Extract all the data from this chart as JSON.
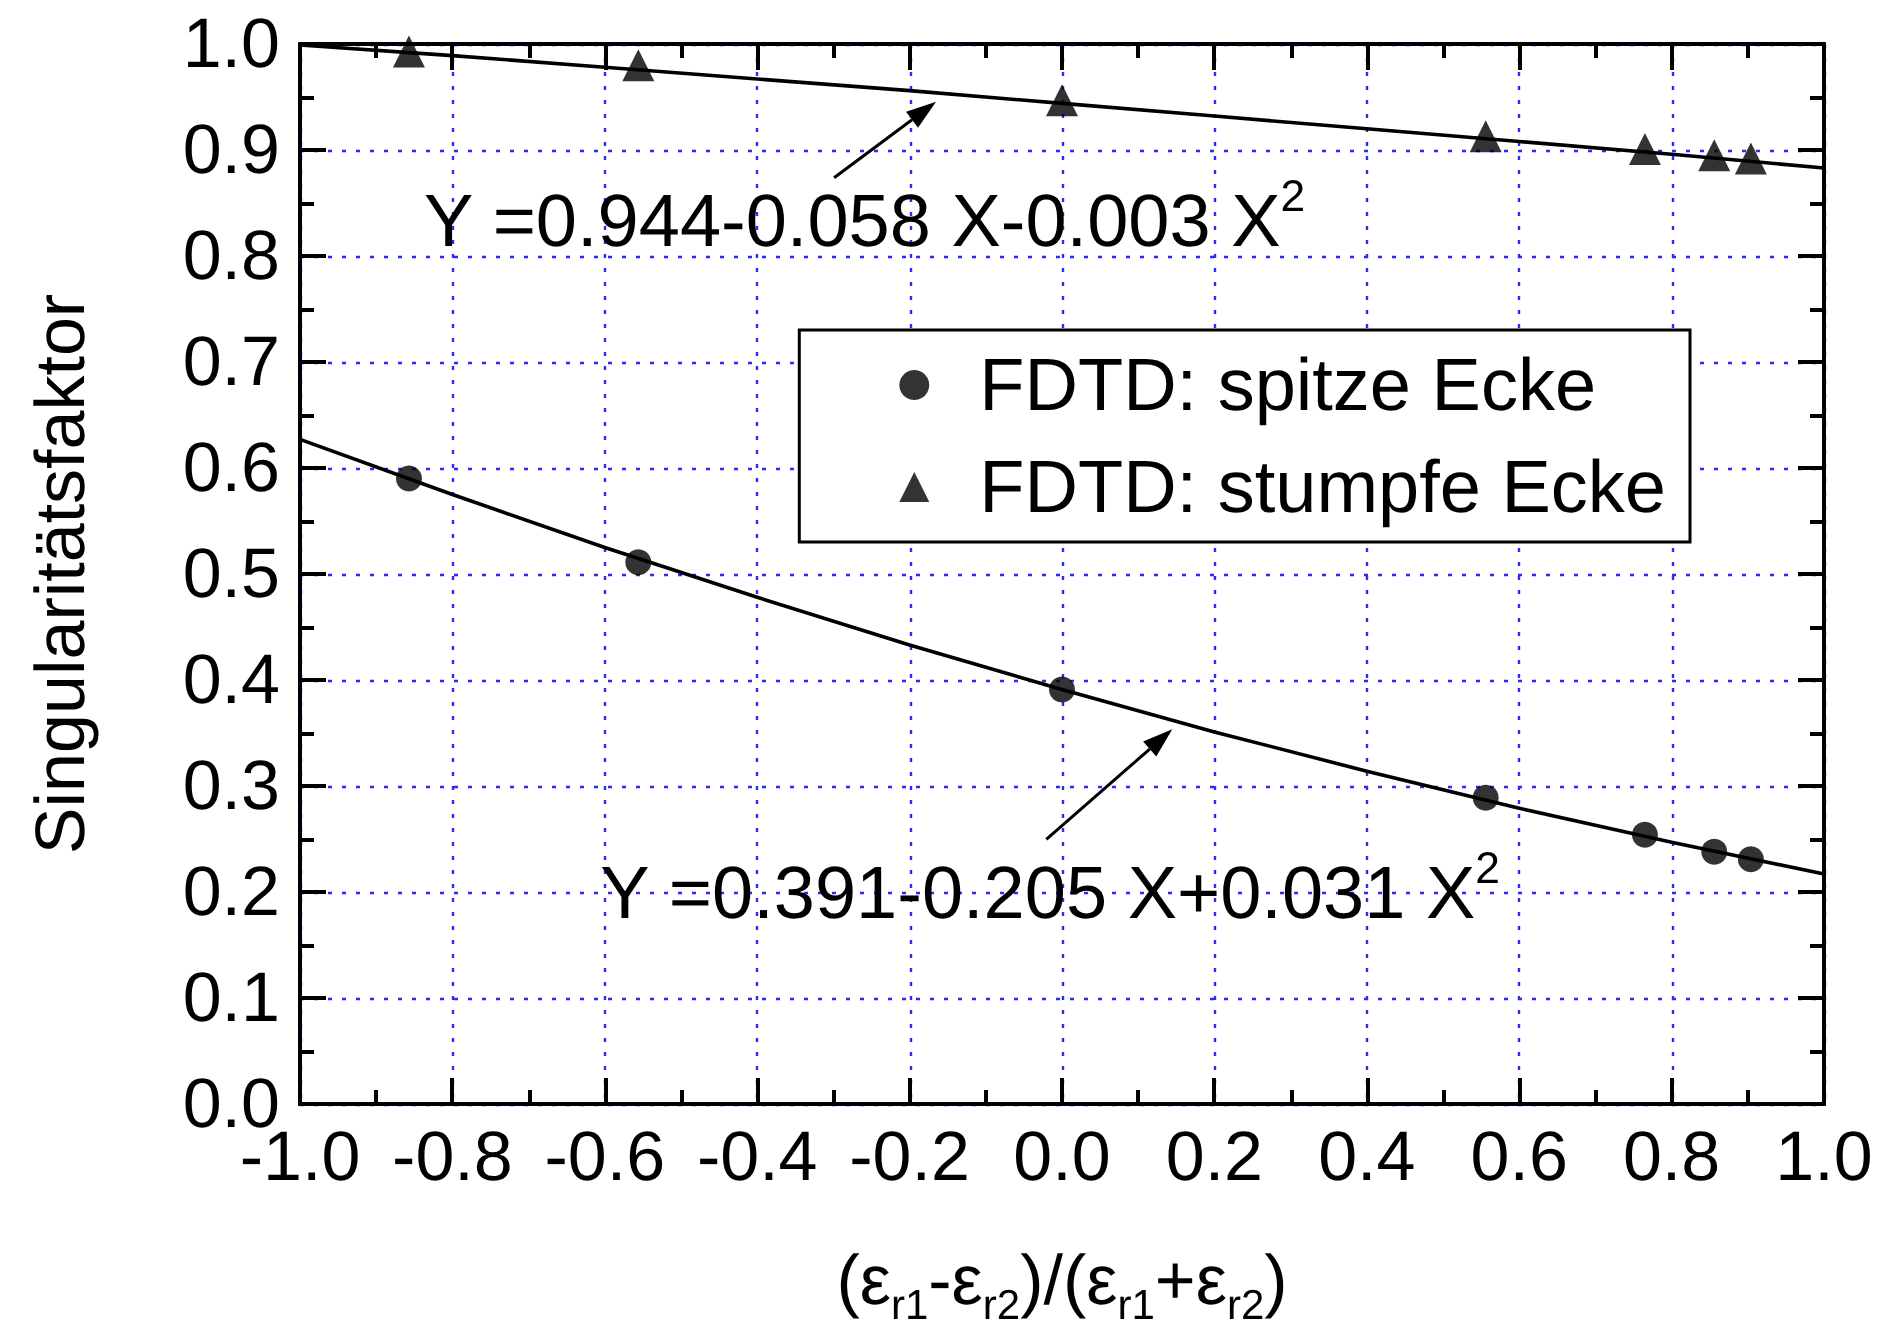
{
  "chart_data": {
    "type": "scatter",
    "xlabel": "(ε$_{r1}$-ε$_{r2}$)/(ε$_{r1}$+ε$_{r2}$)",
    "ylabel": "Singularitätsfaktor",
    "x": [
      -0.857,
      -0.556,
      0,
      0.556,
      0.765,
      0.856,
      0.904
    ],
    "series": [
      {
        "name": "FDTD: spitze Ecke",
        "marker": "circle",
        "color": "#000000",
        "values": [
          0.59,
          0.511,
          0.391,
          0.289,
          0.254,
          0.238,
          0.231
        ]
      },
      {
        "name": "FDTD: stumpfe Ecke",
        "marker": "triangle",
        "color": "#000000",
        "values": [
          0.993,
          0.98,
          0.947,
          0.913,
          0.901,
          0.895,
          0.892
        ]
      },
      {
        "type": "line",
        "marker": "none",
        "color": "#000000",
        "x": [
          -1,
          -0.8,
          -0.6,
          -0.4,
          -0.2,
          0,
          0.2,
          0.4,
          0.6,
          0.8,
          1
        ],
        "values": [
          0.627,
          0.575,
          0.525,
          0.478,
          0.433,
          0.391,
          0.351,
          0.314,
          0.279,
          0.247,
          0.217
        ]
      },
      {
        "type": "line",
        "marker": "none",
        "color": "#000000",
        "x": [
          -1,
          -0.8,
          -0.6,
          -0.4,
          -0.2,
          0,
          0.2,
          0.4,
          0.6,
          0.8,
          1
        ],
        "values": [
          0.999,
          0.989,
          0.978,
          0.967,
          0.956,
          0.944,
          0.932,
          0.92,
          0.908,
          0.896,
          0.883
        ]
      }
    ],
    "xlim": [
      -1,
      1
    ],
    "xticks": [
      {
        "value": -1,
        "label": "-1.0"
      },
      {
        "value": -0.9,
        "label": null
      },
      -0.8,
      {
        "value": -0.7,
        "label": null
      },
      -0.6,
      {
        "value": -0.5,
        "label": null
      },
      -0.4,
      {
        "value": -0.3,
        "label": null
      },
      -0.2,
      {
        "value": -0.1,
        "label": null
      },
      {
        "value": 0,
        "label": "0.0"
      },
      {
        "value": 0.1,
        "label": null
      },
      0.2,
      {
        "value": 0.3,
        "label": null
      },
      0.4,
      {
        "value": 0.5,
        "label": null
      },
      0.6,
      {
        "value": 0.7,
        "label": null
      },
      0.8,
      {
        "value": 0.9,
        "label": null
      },
      {
        "value": 1,
        "label": "1.0"
      }
    ],
    "ylim": [
      0,
      1
    ],
    "yticks": [
      {
        "value": 0,
        "label": "0.0"
      },
      {
        "value": 0.05,
        "label": null
      },
      0.1,
      {
        "value": 0.15,
        "label": null
      },
      0.2,
      {
        "value": 0.25,
        "label": null
      },
      0.3,
      {
        "value": 0.35,
        "label": null
      },
      0.4,
      {
        "value": 0.45,
        "label": null
      },
      0.5,
      {
        "value": 0.55,
        "label": null
      },
      0.6,
      {
        "value": 0.65,
        "label": null
      },
      0.7,
      {
        "value": 0.75,
        "label": null
      },
      0.8,
      {
        "value": 0.85,
        "label": null
      },
      0.9,
      {
        "value": 0.95,
        "label": null
      },
      {
        "value": 1,
        "label": "1.0"
      }
    ],
    "grid": true,
    "legend": "top right",
    "annotations": [
      {
        "text": "Y =0.944-0.058 X-0.003 X$^{2}$",
        "x": -0.16,
        "y": 0.953
      },
      {
        "text": "Y =0.391-0.205 X+0.031 X$^{2}$",
        "x": 0.15,
        "y": 0.361
      }
    ]
  }
}
